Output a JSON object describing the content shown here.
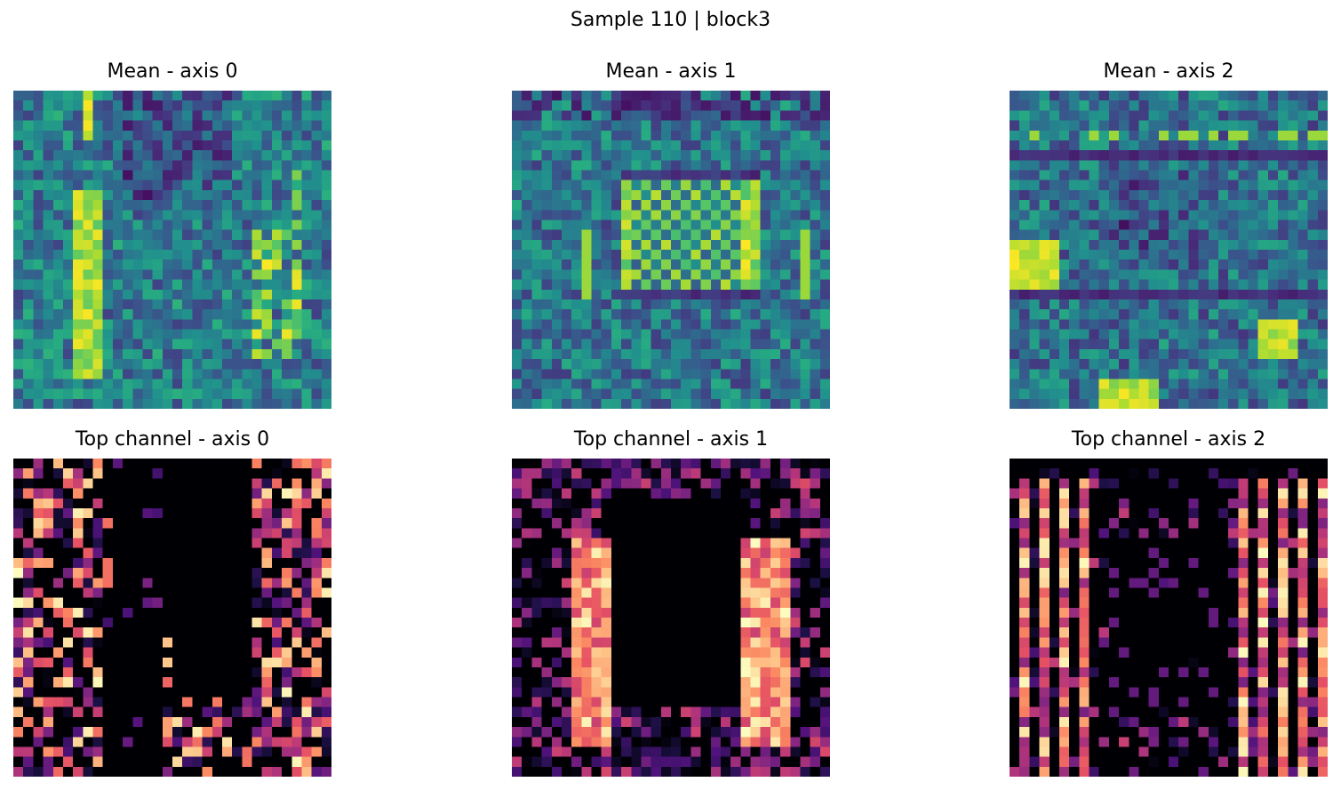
{
  "figure": {
    "title": "Sample 110 | block3"
  },
  "chart_data": [
    {
      "type": "heatmap",
      "title": "Mean - axis 0",
      "colormap": "viridis",
      "grid": false,
      "axes_visible": false,
      "matrix_size": [
        32,
        32
      ],
      "pattern": "vertical-bands",
      "seed": 110
    },
    {
      "type": "heatmap",
      "title": "Mean - axis 1",
      "colormap": "viridis",
      "grid": false,
      "axes_visible": false,
      "matrix_size": [
        32,
        32
      ],
      "pattern": "rectangle-frame",
      "seed": 111
    },
    {
      "type": "heatmap",
      "title": "Mean - axis 2",
      "colormap": "viridis",
      "grid": false,
      "axes_visible": false,
      "matrix_size": [
        32,
        32
      ],
      "pattern": "horizontal-bands",
      "seed": 112
    },
    {
      "type": "heatmap",
      "title": "Top channel - axis 0",
      "colormap": "magma",
      "grid": false,
      "axes_visible": false,
      "matrix_size": [
        32,
        32
      ],
      "pattern": "side-columns",
      "seed": 210
    },
    {
      "type": "heatmap",
      "title": "Top channel - axis 1",
      "colormap": "magma",
      "grid": false,
      "axes_visible": false,
      "matrix_size": [
        32,
        32
      ],
      "pattern": "dark-center-block",
      "seed": 211
    },
    {
      "type": "heatmap",
      "title": "Top channel - axis 2",
      "colormap": "magma",
      "grid": false,
      "axes_visible": false,
      "matrix_size": [
        32,
        32
      ],
      "pattern": "vertical-stripes",
      "seed": 212
    }
  ]
}
